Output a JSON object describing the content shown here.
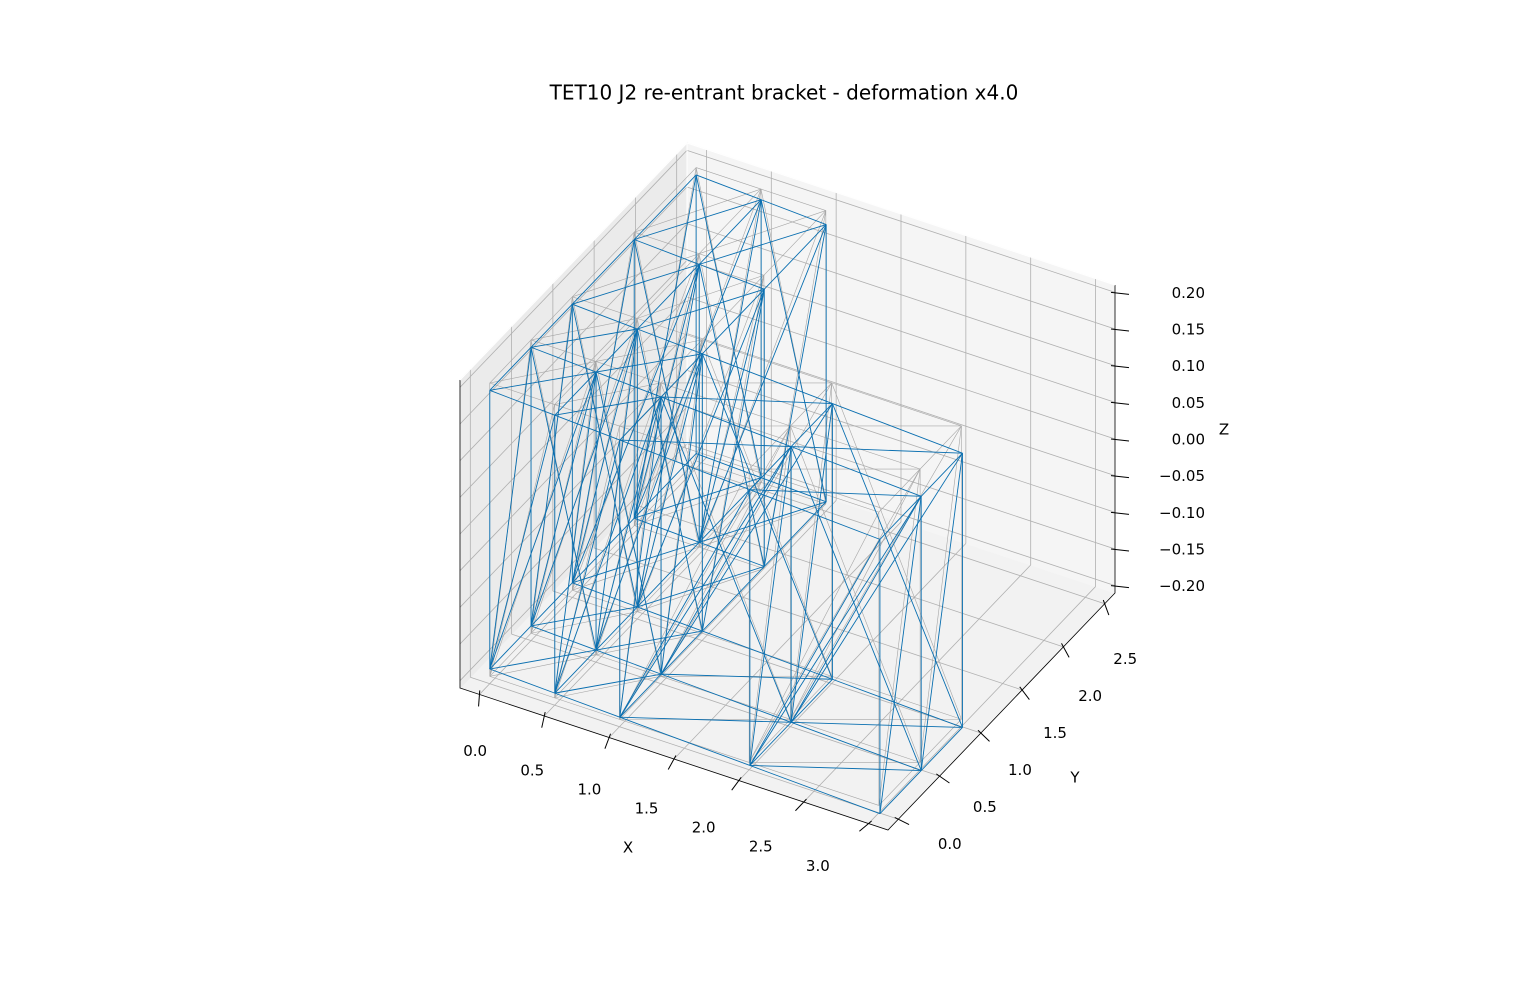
{
  "chart_data": {
    "type": "wireframe3d",
    "title": "TET10 J2 re-entrant bracket - deformation x4.0",
    "xlabel": "X",
    "ylabel": "Y",
    "zlabel": "Z",
    "xlim": [
      -0.15,
      3.15
    ],
    "ylim": [
      -0.125,
      2.625
    ],
    "zlim": [
      -0.21,
      0.21
    ],
    "xticks": [
      {
        "value": 0,
        "label": "0.0"
      },
      0.5,
      {
        "value": 1,
        "label": "1.0"
      },
      1.5,
      {
        "value": 2,
        "label": "2.0"
      },
      2.5,
      {
        "value": 3,
        "label": "3.0"
      }
    ],
    "yticks": [
      {
        "value": 0,
        "label": "0.0"
      },
      0.5,
      {
        "value": 1,
        "label": "1.0"
      },
      1.5,
      {
        "value": 2,
        "label": "2.0"
      },
      2.5
    ],
    "zticks": [
      {
        "value": -0.2,
        "label": "−0.20"
      },
      {
        "value": -0.15,
        "label": "−0.15"
      },
      {
        "value": -0.1,
        "label": "−0.10"
      },
      {
        "value": -0.05,
        "label": "−0.05"
      },
      {
        "value": 0,
        "label": "0.00"
      },
      0.05,
      {
        "value": 0.1,
        "label": "0.10"
      },
      0.15,
      {
        "value": 0.2,
        "label": "0.20"
      }
    ],
    "grid": true,
    "elements": [
      [
        0,
        5,
        6,
        1,
        21,
        26,
        27,
        22
      ],
      [
        1,
        6,
        7,
        2,
        22,
        27,
        28,
        23
      ],
      [
        2,
        7,
        8,
        3,
        23,
        28,
        29,
        24
      ],
      [
        3,
        8,
        9,
        4,
        24,
        29,
        30,
        25
      ],
      [
        5,
        10,
        11,
        6,
        26,
        31,
        32,
        27
      ],
      [
        6,
        11,
        12,
        7,
        27,
        32,
        33,
        28
      ],
      [
        7,
        12,
        13,
        8,
        28,
        33,
        34,
        29
      ],
      [
        8,
        13,
        14,
        9,
        29,
        34,
        35,
        30
      ],
      [
        10,
        15,
        16,
        11,
        31,
        36,
        37,
        32
      ],
      [
        11,
        16,
        17,
        12,
        32,
        37,
        38,
        33
      ],
      [
        15,
        18,
        19,
        16,
        36,
        39,
        40,
        37
      ],
      [
        16,
        19,
        20,
        17,
        37,
        40,
        41,
        38
      ]
    ],
    "meshes": [
      {
        "color": "#a6a6a6",
        "nodes": [
          [
            0,
            0,
            -0.2
          ],
          [
            0,
            0.5,
            -0.2
          ],
          [
            0,
            1,
            -0.2
          ],
          [
            0,
            1.75,
            -0.2
          ],
          [
            0,
            2.5,
            -0.2
          ],
          [
            0.5,
            0,
            -0.2
          ],
          [
            0.5,
            0.5,
            -0.2
          ],
          [
            0.5,
            1,
            -0.2
          ],
          [
            0.5,
            1.75,
            -0.2
          ],
          [
            0.5,
            2.5,
            -0.2
          ],
          [
            1,
            0,
            -0.2
          ],
          [
            1,
            0.5,
            -0.2
          ],
          [
            1,
            1,
            -0.2
          ],
          [
            1,
            1.75,
            -0.2
          ],
          [
            1,
            2.5,
            -0.2
          ],
          [
            2,
            0,
            -0.2
          ],
          [
            2,
            0.5,
            -0.2
          ],
          [
            2,
            1,
            -0.2
          ],
          [
            3,
            0,
            -0.2
          ],
          [
            3,
            0.5,
            -0.2
          ],
          [
            3,
            1,
            -0.2
          ],
          [
            0,
            0,
            0.2
          ],
          [
            0,
            0.5,
            0.2
          ],
          [
            0,
            1,
            0.2
          ],
          [
            0,
            1.75,
            0.2
          ],
          [
            0,
            2.5,
            0.2
          ],
          [
            0.5,
            0,
            0.2
          ],
          [
            0.5,
            0.5,
            0.2
          ],
          [
            0.5,
            1,
            0.2
          ],
          [
            0.5,
            1.75,
            0.2
          ],
          [
            0.5,
            2.5,
            0.2
          ],
          [
            1,
            0,
            0.2
          ],
          [
            1,
            0.5,
            0.2
          ],
          [
            1,
            1,
            0.2
          ],
          [
            1,
            1.75,
            0.2
          ],
          [
            1,
            2.5,
            0.2
          ],
          [
            2,
            0,
            0.2
          ],
          [
            2,
            0.5,
            0.2
          ],
          [
            2,
            1,
            0.2
          ],
          [
            3,
            0,
            0.2
          ],
          [
            3,
            0.5,
            0.2
          ],
          [
            3,
            1,
            0.2
          ]
        ]
      },
      {
        "color": "#0a6fb0",
        "nodes": [
          [
            0,
            0,
            -0.19
          ],
          [
            0,
            0.5,
            -0.19
          ],
          [
            0,
            1,
            -0.19
          ],
          [
            0,
            1.75,
            -0.19
          ],
          [
            0,
            2.5,
            -0.19
          ],
          [
            0.495,
            0.01,
            -0.195
          ],
          [
            0.495,
            0.51,
            -0.195
          ],
          [
            0.495,
            1.01,
            -0.195
          ],
          [
            0.495,
            1.76,
            -0.195
          ],
          [
            0.495,
            2.51,
            -0.195
          ],
          [
            0.99,
            0.02,
            -0.2
          ],
          [
            0.99,
            0.52,
            -0.2
          ],
          [
            0.99,
            1.02,
            -0.2
          ],
          [
            0.99,
            1.77,
            -0.2
          ],
          [
            0.99,
            2.52,
            -0.2
          ],
          [
            1.98,
            0.04,
            -0.21
          ],
          [
            1.98,
            0.54,
            -0.21
          ],
          [
            1.98,
            1.04,
            -0.21
          ],
          [
            2.97,
            0.06,
            -0.22
          ],
          [
            2.97,
            0.56,
            -0.22
          ],
          [
            2.97,
            1.06,
            -0.22
          ],
          [
            0,
            0,
            0.19
          ],
          [
            0,
            0.5,
            0.19
          ],
          [
            0,
            1,
            0.19
          ],
          [
            0,
            1.75,
            0.19
          ],
          [
            0,
            2.5,
            0.19
          ],
          [
            0.495,
            0.01,
            0.184
          ],
          [
            0.495,
            0.51,
            0.184
          ],
          [
            0.495,
            1.01,
            0.184
          ],
          [
            0.495,
            1.76,
            0.184
          ],
          [
            0.495,
            2.51,
            0.184
          ],
          [
            0.99,
            0.02,
            0.178
          ],
          [
            0.99,
            0.52,
            0.178
          ],
          [
            0.99,
            1.02,
            0.178
          ],
          [
            0.99,
            1.77,
            0.178
          ],
          [
            0.99,
            2.52,
            0.178
          ],
          [
            1.98,
            0.04,
            0.166
          ],
          [
            1.98,
            0.54,
            0.166
          ],
          [
            1.98,
            1.04,
            0.166
          ],
          [
            2.97,
            0.06,
            0.154
          ],
          [
            2.97,
            0.56,
            0.154
          ],
          [
            2.97,
            1.06,
            0.154
          ]
        ]
      }
    ]
  }
}
